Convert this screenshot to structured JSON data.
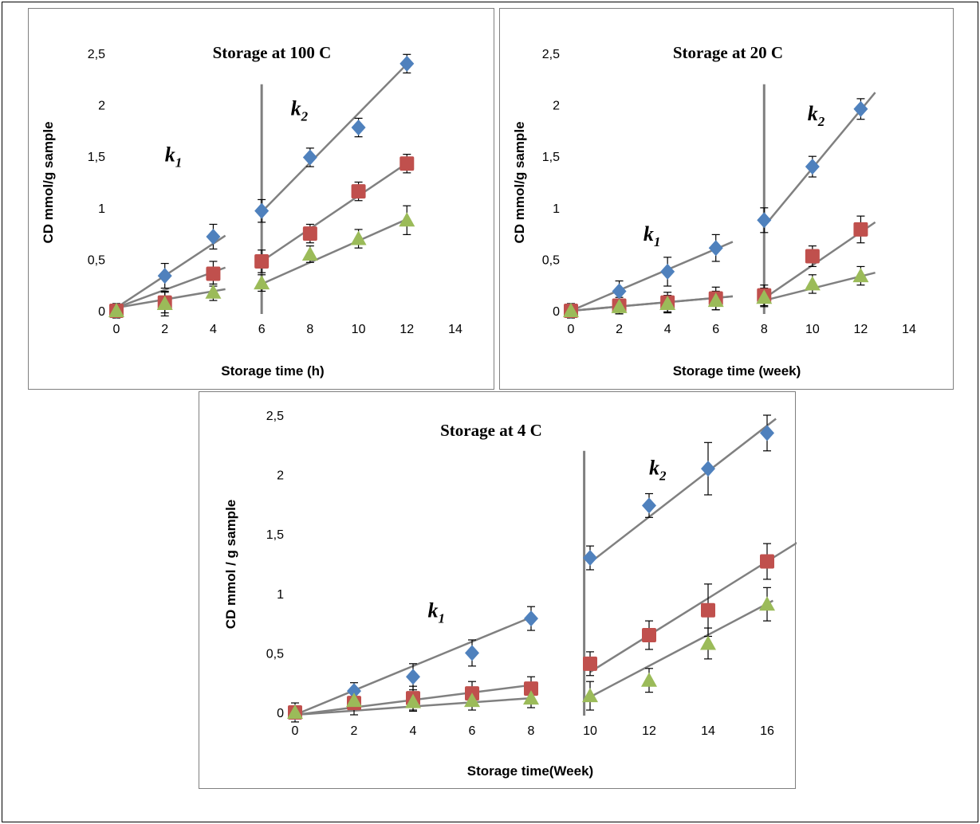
{
  "chart_data": [
    {
      "type": "scatter",
      "title": "Storage at 100  C",
      "xlabel": "Storage time (h)",
      "ylabel": "CD mmol/g sample",
      "xlim": [
        0,
        14
      ],
      "ylim": [
        0,
        2.5
      ],
      "x_ticks": [
        "0",
        "2",
        "4",
        "6",
        "8",
        "10",
        "12",
        "14"
      ],
      "y_ticks": [
        "0",
        "0,5",
        "1",
        "1,5",
        "2",
        "2,5"
      ],
      "divider_x": 6,
      "k_labels": [
        {
          "main": "k",
          "sub": "1",
          "x": 2.0,
          "y": 1.45
        },
        {
          "main": "k",
          "sub": "2",
          "x": 7.2,
          "y": 1.9
        }
      ],
      "series": [
        {
          "color": "#4f81bd",
          "marker": "diamond",
          "x": [
            0,
            2,
            4,
            6,
            8,
            10,
            12
          ],
          "y": [
            0,
            0.34,
            0.72,
            0.97,
            1.49,
            1.78,
            2.4
          ],
          "err": [
            0.07,
            0.12,
            0.12,
            0.11,
            0.09,
            0.09,
            0.09
          ],
          "fits": [
            {
              "x": [
                0,
                4.5
              ],
              "y": [
                0.03,
                0.73
              ]
            },
            {
              "x": [
                6,
                12.1
              ],
              "y": [
                0.96,
                2.42
              ]
            }
          ]
        },
        {
          "color": "#c0504d",
          "marker": "square",
          "x": [
            0,
            2,
            4,
            6,
            8,
            10,
            12
          ],
          "y": [
            0,
            0.08,
            0.36,
            0.48,
            0.75,
            1.16,
            1.43
          ],
          "err": [
            0.05,
            0.1,
            0.12,
            0.11,
            0.09,
            0.09,
            0.09
          ],
          "fits": [
            {
              "x": [
                0,
                4.5
              ],
              "y": [
                0.03,
                0.42
              ]
            },
            {
              "x": [
                6,
                12.1
              ],
              "y": [
                0.48,
                1.45
              ]
            }
          ]
        },
        {
          "color": "#9bbb59",
          "marker": "triangle",
          "x": [
            0,
            2,
            4,
            6,
            8,
            10,
            12
          ],
          "y": [
            0,
            0.07,
            0.18,
            0.27,
            0.55,
            0.7,
            0.88
          ],
          "err": [
            0.05,
            0.12,
            0.08,
            0.08,
            0.08,
            0.09,
            0.14
          ],
          "fits": [
            {
              "x": [
                0,
                4.5
              ],
              "y": [
                0.03,
                0.21
              ]
            },
            {
              "x": [
                6,
                12.1
              ],
              "y": [
                0.26,
                0.9
              ]
            }
          ]
        }
      ]
    },
    {
      "type": "scatter",
      "title": "Storage at 20  C",
      "xlabel": "Storage time (week)",
      "ylabel": "CD mmol/g sample",
      "xlim": [
        0,
        14
      ],
      "ylim": [
        0,
        2.5
      ],
      "x_ticks": [
        "0",
        "2",
        "4",
        "6",
        "8",
        "10",
        "12",
        "14"
      ],
      "y_ticks": [
        "0",
        "0,5",
        "1",
        "1,5",
        "2",
        "2,5"
      ],
      "divider_x": 8,
      "k_labels": [
        {
          "main": "k",
          "sub": "1",
          "x": 3.0,
          "y": 0.68
        },
        {
          "main": "k",
          "sub": "2",
          "x": 9.8,
          "y": 1.85
        }
      ],
      "series": [
        {
          "color": "#4f81bd",
          "marker": "diamond",
          "x": [
            0,
            2,
            4,
            6,
            8,
            10,
            12
          ],
          "y": [
            0,
            0.19,
            0.38,
            0.61,
            0.88,
            1.4,
            1.96
          ],
          "err": [
            0.07,
            0.1,
            0.14,
            0.13,
            0.12,
            0.1,
            0.1
          ],
          "fits": [
            {
              "x": [
                0,
                6.7
              ],
              "y": [
                0.0,
                0.67
              ]
            },
            {
              "x": [
                8,
                12.6
              ],
              "y": [
                0.82,
                2.12
              ]
            }
          ]
        },
        {
          "color": "#c0504d",
          "marker": "square",
          "x": [
            0,
            2,
            4,
            6,
            8,
            10,
            12
          ],
          "y": [
            0,
            0.05,
            0.08,
            0.12,
            0.15,
            0.53,
            0.79
          ],
          "err": [
            0.05,
            0.08,
            0.1,
            0.11,
            0.1,
            0.1,
            0.13
          ],
          "fits": [
            {
              "x": [
                0,
                6.7
              ],
              "y": [
                0.0,
                0.14
              ]
            },
            {
              "x": [
                8,
                12.6
              ],
              "y": [
                0.12,
                0.86
              ]
            }
          ]
        },
        {
          "color": "#9bbb59",
          "marker": "triangle",
          "x": [
            0,
            2,
            4,
            6,
            8,
            10,
            12
          ],
          "y": [
            0,
            0.04,
            0.07,
            0.1,
            0.13,
            0.26,
            0.34
          ],
          "err": [
            0.05,
            0.07,
            0.08,
            0.09,
            0.09,
            0.09,
            0.09
          ],
          "fits": [
            {
              "x": [
                0,
                6.7
              ],
              "y": [
                0.0,
                0.14
              ]
            },
            {
              "x": [
                8,
                12.6
              ],
              "y": [
                0.1,
                0.37
              ]
            }
          ]
        }
      ]
    },
    {
      "type": "scatter",
      "title": "Storage at 4  C",
      "xlabel": "Storage time(Week)",
      "ylabel": "CD mmol / g sample",
      "xlim": [
        0,
        16
      ],
      "ylim": [
        0,
        2.5
      ],
      "x_ticks": [
        "0",
        "2",
        "4",
        "6",
        "8",
        "10",
        "12",
        "14",
        "16"
      ],
      "y_ticks": [
        "0",
        "0,5",
        "1",
        "1,5",
        "2",
        "2,5"
      ],
      "divider_x": 9.8,
      "k_labels": [
        {
          "main": "k",
          "sub": "1",
          "x": 4.5,
          "y": 0.8
        },
        {
          "main": "k",
          "sub": "2",
          "x": 12.0,
          "y": 2.0
        }
      ],
      "series": [
        {
          "color": "#4f81bd",
          "marker": "diamond",
          "x": [
            0,
            2,
            4,
            6,
            8,
            10,
            12,
            14,
            16
          ],
          "y": [
            0,
            0.18,
            0.3,
            0.5,
            0.79,
            1.3,
            1.74,
            2.05,
            2.35
          ],
          "err": [
            0.08,
            0.07,
            0.11,
            0.11,
            0.1,
            0.1,
            0.1,
            0.22,
            0.15
          ],
          "fits": [
            {
              "x": [
                0,
                8
              ],
              "y": [
                -0.02,
                0.8
              ]
            },
            {
              "x": [
                10,
                16.3
              ],
              "y": [
                1.26,
                2.47
              ]
            }
          ]
        },
        {
          "color": "#c0504d",
          "marker": "square",
          "x": [
            0,
            2,
            4,
            6,
            8,
            10,
            12,
            14,
            16
          ],
          "y": [
            0,
            0.08,
            0.12,
            0.16,
            0.2,
            0.41,
            0.65,
            0.86,
            1.27
          ],
          "err": [
            0.05,
            0.1,
            0.1,
            0.1,
            0.1,
            0.1,
            0.12,
            0.22,
            0.15
          ],
          "fits": [
            {
              "x": [
                0,
                8
              ],
              "y": [
                -0.02,
                0.23
              ]
            },
            {
              "x": [
                10,
                17.1
              ],
              "y": [
                0.34,
                1.44
              ]
            }
          ]
        },
        {
          "color": "#9bbb59",
          "marker": "triangle",
          "x": [
            0,
            2,
            4,
            6,
            8,
            10,
            12,
            14,
            16
          ],
          "y": [
            0,
            0.1,
            0.09,
            0.1,
            0.12,
            0.14,
            0.27,
            0.58,
            0.91
          ],
          "err": [
            0.05,
            0.07,
            0.08,
            0.08,
            0.08,
            0.12,
            0.1,
            0.13,
            0.14
          ],
          "fits": [
            {
              "x": [
                0,
                8
              ],
              "y": [
                -0.02,
                0.12
              ]
            },
            {
              "x": [
                10,
                16.2
              ],
              "y": [
                0.13,
                0.94
              ]
            }
          ]
        }
      ]
    }
  ]
}
